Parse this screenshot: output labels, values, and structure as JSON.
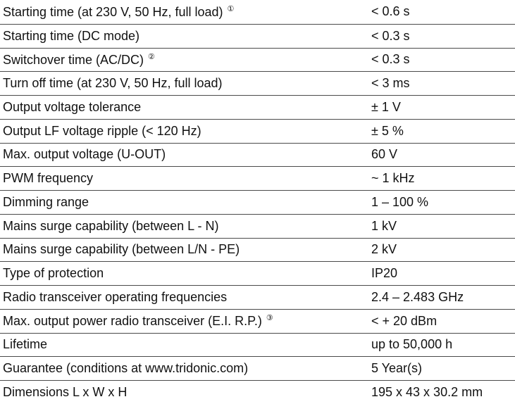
{
  "table": {
    "rows": [
      {
        "label": "Starting time (at 230 V, 50 Hz, full load)",
        "note": "①",
        "value": "< 0.6 s"
      },
      {
        "label": "Starting time (DC mode)",
        "value": "< 0.3 s"
      },
      {
        "label": "Switchover time (AC/DC)",
        "note": "②",
        "value": "< 0.3 s"
      },
      {
        "label": "Turn off time (at 230 V, 50 Hz, full load)",
        "value": "< 3 ms"
      },
      {
        "label": "Output voltage tolerance",
        "value": "± 1 V"
      },
      {
        "label": "Output LF voltage ripple (< 120 Hz)",
        "value": "± 5 %"
      },
      {
        "label": "Max. output voltage (U-OUT)",
        "value": "60 V"
      },
      {
        "label": "PWM frequency",
        "value": "~ 1 kHz"
      },
      {
        "label": "Dimming range",
        "value": "1 – 100 %"
      },
      {
        "label": "Mains surge capability (between L - N)",
        "value": "1 kV"
      },
      {
        "label": "Mains surge capability (between L/N - PE)",
        "value": "2 kV"
      },
      {
        "label": "Type of protection",
        "value": "IP20"
      },
      {
        "label": "Radio transceiver operating frequencies",
        "value": "2.4 – 2.483 GHz"
      },
      {
        "label": "Max. output power radio transceiver (E.I. R.P.)",
        "note": "③",
        "value": "< + 20 dBm"
      },
      {
        "label": "Lifetime",
        "value": "up to 50,000 h"
      },
      {
        "label": "Guarantee (conditions at www.tridonic.com)",
        "value": "5 Year(s)"
      },
      {
        "label": "Dimensions L x W x H",
        "value": "195 x 43 x 30.2 mm"
      }
    ]
  }
}
